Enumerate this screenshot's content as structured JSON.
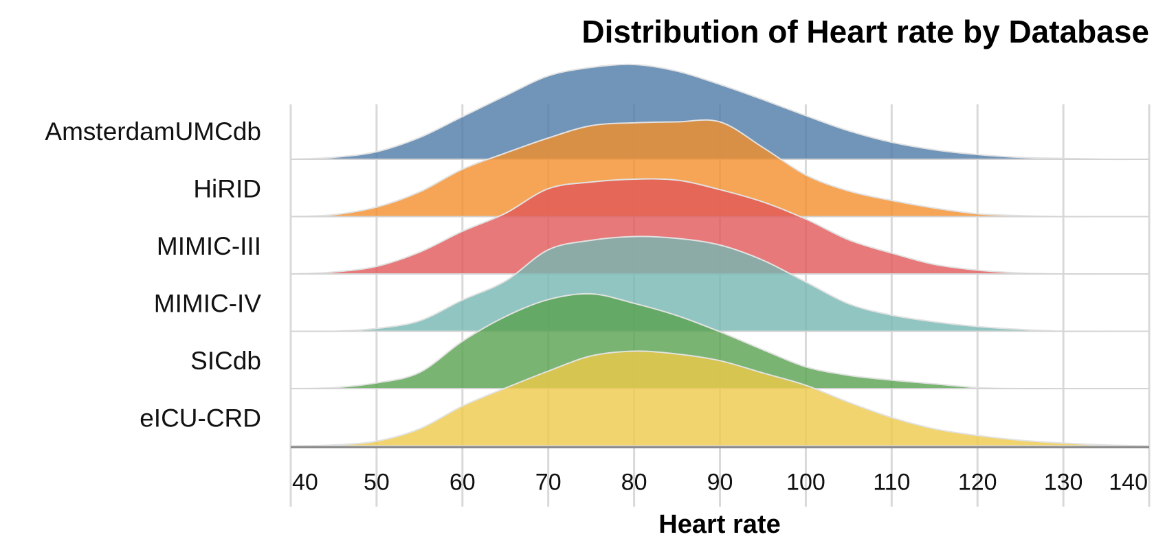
{
  "chart_data": {
    "type": "area",
    "subtype": "ridgeline",
    "title": "Distribution of Heart rate by Database",
    "xlabel": "Heart rate",
    "xlim": [
      40,
      140
    ],
    "x_ticks": [
      "40",
      "50",
      "60",
      "70",
      "80",
      "90",
      "100",
      "110",
      "120",
      "130",
      "140"
    ],
    "grid": true,
    "legend": "none",
    "x": [
      40,
      45,
      50,
      55,
      60,
      65,
      70,
      75,
      80,
      85,
      90,
      95,
      100,
      105,
      110,
      115,
      120,
      125,
      130,
      135,
      140
    ],
    "series": [
      {
        "name": "AmsterdamUMCdb",
        "color": "#4e79a7",
        "values": [
          0.0,
          0.02,
          0.08,
          0.23,
          0.45,
          0.67,
          0.88,
          0.97,
          1.0,
          0.93,
          0.79,
          0.63,
          0.46,
          0.3,
          0.18,
          0.1,
          0.05,
          0.02,
          0.01,
          0.0,
          0.0
        ]
      },
      {
        "name": "HiRID",
        "color": "#f28e2b",
        "values": [
          0.0,
          0.02,
          0.1,
          0.26,
          0.5,
          0.67,
          0.83,
          0.96,
          0.99,
          1.0,
          1.0,
          0.73,
          0.44,
          0.27,
          0.17,
          0.09,
          0.03,
          0.01,
          0.0,
          0.0,
          0.0
        ]
      },
      {
        "name": "MIMIC-III",
        "color": "#e15759",
        "values": [
          0.0,
          0.02,
          0.08,
          0.23,
          0.45,
          0.64,
          0.9,
          0.97,
          1.0,
          0.99,
          0.89,
          0.76,
          0.58,
          0.36,
          0.22,
          0.1,
          0.04,
          0.01,
          0.0,
          0.0,
          0.0
        ]
      },
      {
        "name": "MIMIC-IV",
        "color": "#76b7b2",
        "values": [
          0.0,
          0.0,
          0.03,
          0.11,
          0.33,
          0.53,
          0.86,
          0.96,
          1.0,
          0.98,
          0.91,
          0.75,
          0.52,
          0.29,
          0.17,
          0.1,
          0.05,
          0.02,
          0.0,
          0.0,
          0.0
        ]
      },
      {
        "name": "SICdb",
        "color": "#59a14f",
        "values": [
          0.0,
          0.01,
          0.06,
          0.17,
          0.5,
          0.76,
          0.94,
          1.0,
          0.9,
          0.77,
          0.6,
          0.41,
          0.23,
          0.14,
          0.09,
          0.05,
          0.01,
          0.0,
          0.0,
          0.0,
          0.0
        ]
      },
      {
        "name": "eICU-CRD",
        "color": "#edc948",
        "values": [
          0.0,
          0.01,
          0.05,
          0.18,
          0.42,
          0.61,
          0.79,
          0.95,
          1.0,
          0.97,
          0.9,
          0.77,
          0.64,
          0.46,
          0.3,
          0.18,
          0.11,
          0.06,
          0.03,
          0.01,
          0.0
        ]
      }
    ]
  }
}
